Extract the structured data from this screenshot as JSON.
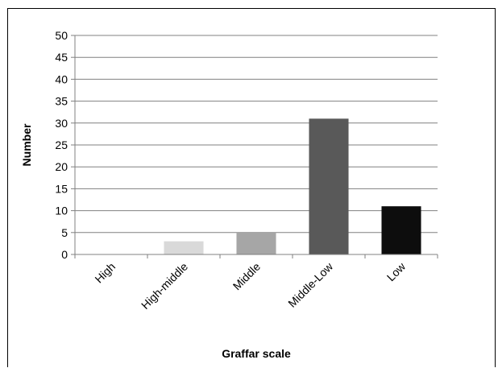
{
  "chart_data": {
    "type": "bar",
    "categories": [
      "High",
      "High-middle",
      "Middle",
      "Middle-Low",
      "Low"
    ],
    "values": [
      0,
      3,
      5,
      31,
      11
    ],
    "colors": [
      "#ffffff",
      "#d9d9d9",
      "#a6a6a6",
      "#595959",
      "#0d0d0d"
    ],
    "xlabel": "Graffar scale",
    "ylabel": "Number",
    "ylim": [
      0,
      50
    ],
    "yticks": [
      0,
      5,
      10,
      15,
      20,
      25,
      30,
      35,
      40,
      45,
      50
    ],
    "grid": true,
    "gridline_color": "#808080",
    "legend": "none"
  }
}
